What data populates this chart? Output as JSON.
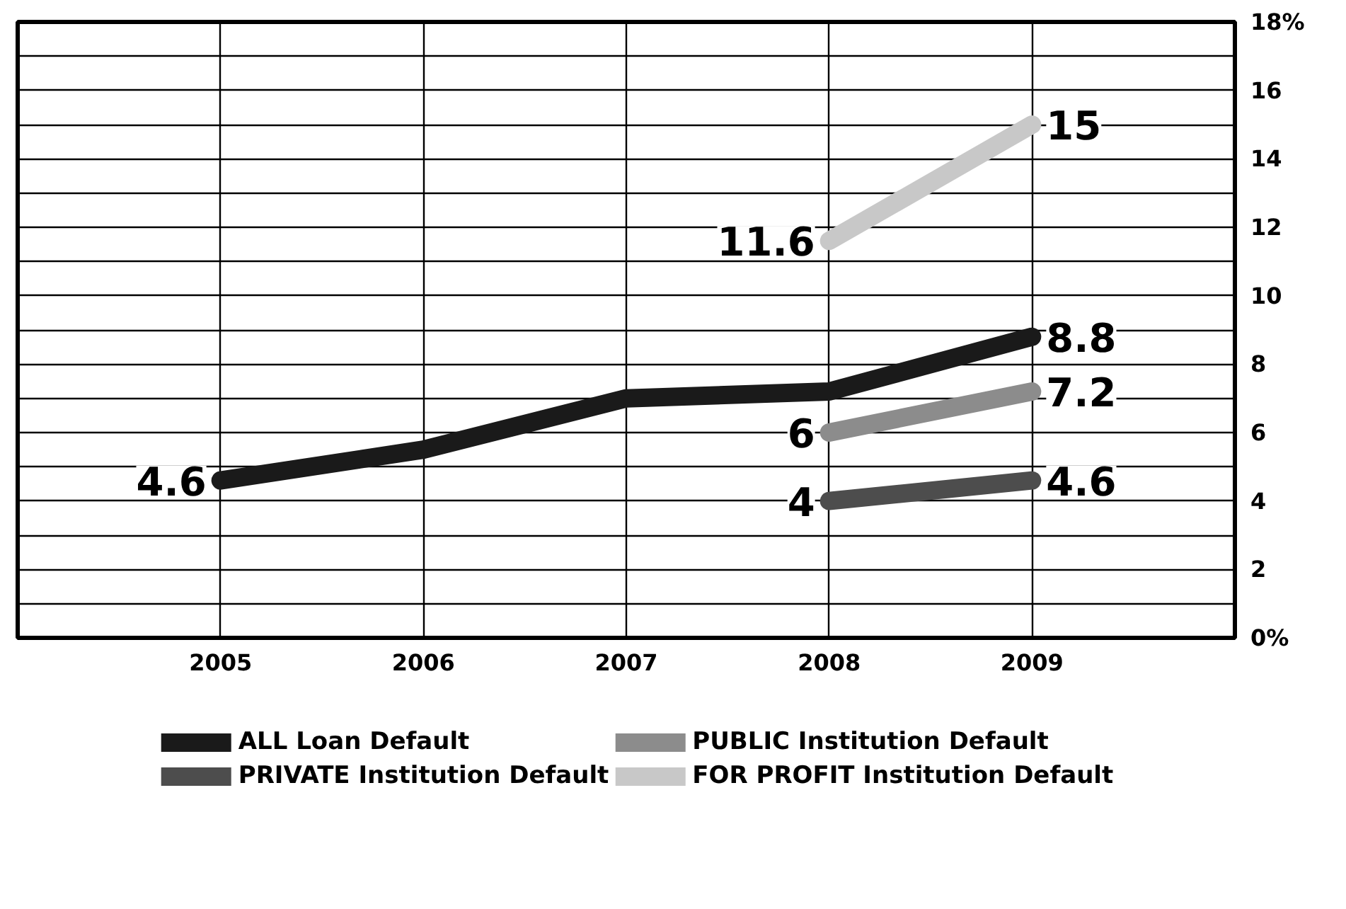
{
  "chart_data": {
    "type": "line",
    "xlim": [
      2004,
      2010
    ],
    "xticks": [
      2005,
      2006,
      2007,
      2008,
      2009
    ],
    "ylim": [
      0,
      18
    ],
    "yticks": [
      {
        "value": 0,
        "label": "0%"
      },
      {
        "value": 1,
        "label": null
      },
      2,
      {
        "value": 3,
        "label": null
      },
      4,
      {
        "value": 5,
        "label": null
      },
      6,
      {
        "value": 7,
        "label": null
      },
      8,
      {
        "value": 9,
        "label": null
      },
      10,
      {
        "value": 11,
        "label": null
      },
      12,
      {
        "value": 13,
        "label": null
      },
      14,
      {
        "value": 15,
        "label": null
      },
      16,
      {
        "value": 17,
        "label": null
      },
      {
        "value": 18,
        "label": "18%"
      }
    ],
    "grid": true,
    "legend": "bottom",
    "marker": "none",
    "line_style": "solid",
    "series": [
      {
        "name": "ALL Loan Default",
        "color": "#1a1a1a",
        "x": [
          2005,
          2006,
          2007,
          2008,
          2009
        ],
        "values": [
          4.6,
          5.5,
          7.0,
          7.2,
          8.8
        ],
        "value_labels": [
          "4.6",
          null,
          null,
          null,
          "8.8"
        ]
      },
      {
        "name": "PUBLIC Institution Default",
        "color": "#8c8c8c",
        "x": [
          2008,
          2009
        ],
        "values": [
          6,
          7.2
        ],
        "value_labels": [
          "6",
          "7.2"
        ]
      },
      {
        "name": "PRIVATE Institution Default",
        "color": "#4d4d4d",
        "x": [
          2008,
          2009
        ],
        "values": [
          4,
          4.6
        ],
        "value_labels": [
          "4",
          "4.6"
        ]
      },
      {
        "name": "FOR PROFIT Institution Default",
        "color": "#c8c8c8",
        "x": [
          2008,
          2009
        ],
        "values": [
          11.6,
          15
        ],
        "value_labels": [
          "11.6",
          "15"
        ]
      }
    ]
  }
}
